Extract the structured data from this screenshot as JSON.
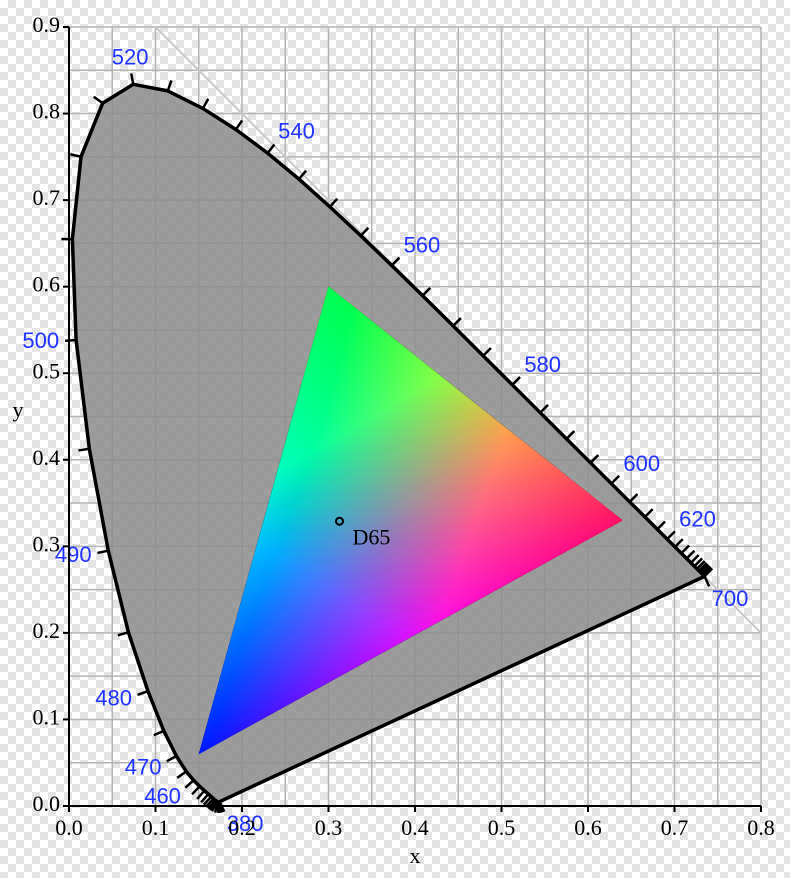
{
  "chart_data": {
    "type": "line",
    "xlabel": "x",
    "ylabel": "y",
    "xlim": [
      0,
      0.8
    ],
    "ylim": [
      0,
      0.9
    ],
    "xticks": [
      {
        "value": 0,
        "label": "0.0"
      },
      0.1,
      0.2,
      0.3,
      0.4,
      0.5,
      0.6,
      0.7,
      0.8
    ],
    "yticks": [
      {
        "value": 0,
        "label": "0.0"
      },
      0.1,
      0.2,
      0.3,
      0.4,
      0.5,
      0.6,
      0.7,
      0.8,
      0.9
    ],
    "xminor": [
      0.05,
      0.15,
      0.25,
      0.35,
      0.45,
      0.55,
      0.65,
      0.75
    ],
    "yminor": [
      0.05,
      0.15,
      0.25,
      0.35,
      0.45,
      0.55,
      0.65,
      0.75,
      0.85
    ],
    "grid": true,
    "spectral_locus": {
      "wavelengths": [
        380,
        385,
        390,
        395,
        400,
        405,
        410,
        415,
        420,
        425,
        430,
        435,
        440,
        445,
        450,
        455,
        460,
        465,
        470,
        475,
        480,
        485,
        490,
        495,
        500,
        505,
        510,
        515,
        520,
        525,
        530,
        535,
        540,
        545,
        550,
        555,
        560,
        565,
        570,
        575,
        580,
        585,
        590,
        595,
        600,
        605,
        610,
        615,
        620,
        625,
        630,
        635,
        640,
        645,
        650,
        655,
        660,
        665,
        670,
        675,
        680,
        685,
        690,
        695,
        700
      ],
      "x": [
        0.1741,
        0.174,
        0.1738,
        0.1736,
        0.1733,
        0.173,
        0.1726,
        0.1721,
        0.1714,
        0.1703,
        0.1689,
        0.1669,
        0.1644,
        0.1611,
        0.1566,
        0.151,
        0.144,
        0.1355,
        0.1241,
        0.1096,
        0.0913,
        0.0687,
        0.0454,
        0.0235,
        0.0082,
        0.0039,
        0.0139,
        0.0389,
        0.0743,
        0.1142,
        0.1547,
        0.1929,
        0.2296,
        0.2658,
        0.3016,
        0.3373,
        0.3731,
        0.4087,
        0.4441,
        0.4788,
        0.5125,
        0.5448,
        0.5752,
        0.6029,
        0.627,
        0.6482,
        0.6658,
        0.6801,
        0.6915,
        0.7006,
        0.7079,
        0.714,
        0.719,
        0.723,
        0.726,
        0.7283,
        0.73,
        0.7311,
        0.732,
        0.7327,
        0.7334,
        0.734,
        0.7344,
        0.7346,
        0.7347
      ],
      "y": [
        0.005,
        0.005,
        0.0049,
        0.0049,
        0.0048,
        0.0048,
        0.0048,
        0.0048,
        0.0051,
        0.0058,
        0.0069,
        0.0086,
        0.0109,
        0.0138,
        0.0177,
        0.0227,
        0.0297,
        0.0399,
        0.0578,
        0.0868,
        0.1327,
        0.2007,
        0.295,
        0.4127,
        0.5384,
        0.6548,
        0.7502,
        0.812,
        0.8338,
        0.8262,
        0.8059,
        0.7816,
        0.7543,
        0.7243,
        0.6923,
        0.6589,
        0.6245,
        0.5896,
        0.5547,
        0.5202,
        0.4866,
        0.4544,
        0.4242,
        0.3965,
        0.3725,
        0.3514,
        0.334,
        0.3197,
        0.3083,
        0.2993,
        0.292,
        0.2859,
        0.2809,
        0.277,
        0.274,
        0.2717,
        0.27,
        0.2689,
        0.268,
        0.2673,
        0.2666,
        0.266,
        0.2656,
        0.2654,
        0.2653
      ],
      "labeled": [
        380,
        460,
        470,
        480,
        490,
        500,
        520,
        540,
        560,
        580,
        600,
        620,
        700
      ],
      "color": "#000000",
      "fill": "#8c8c8c",
      "label_color": "#1f33ff"
    },
    "gamut": {
      "x": [
        0.64,
        0.3,
        0.15
      ],
      "y": [
        0.33,
        0.6,
        0.06
      ],
      "colors": [
        "#ff1040",
        "#00ff40",
        "#0010ff"
      ]
    },
    "white_point": {
      "label": "D65",
      "x": 0.3127,
      "y": 0.329
    },
    "reference_line": {
      "x": [
        0.1,
        0.8
      ],
      "y": [
        0.9,
        0.2
      ],
      "color": "#c8c8c8"
    }
  }
}
